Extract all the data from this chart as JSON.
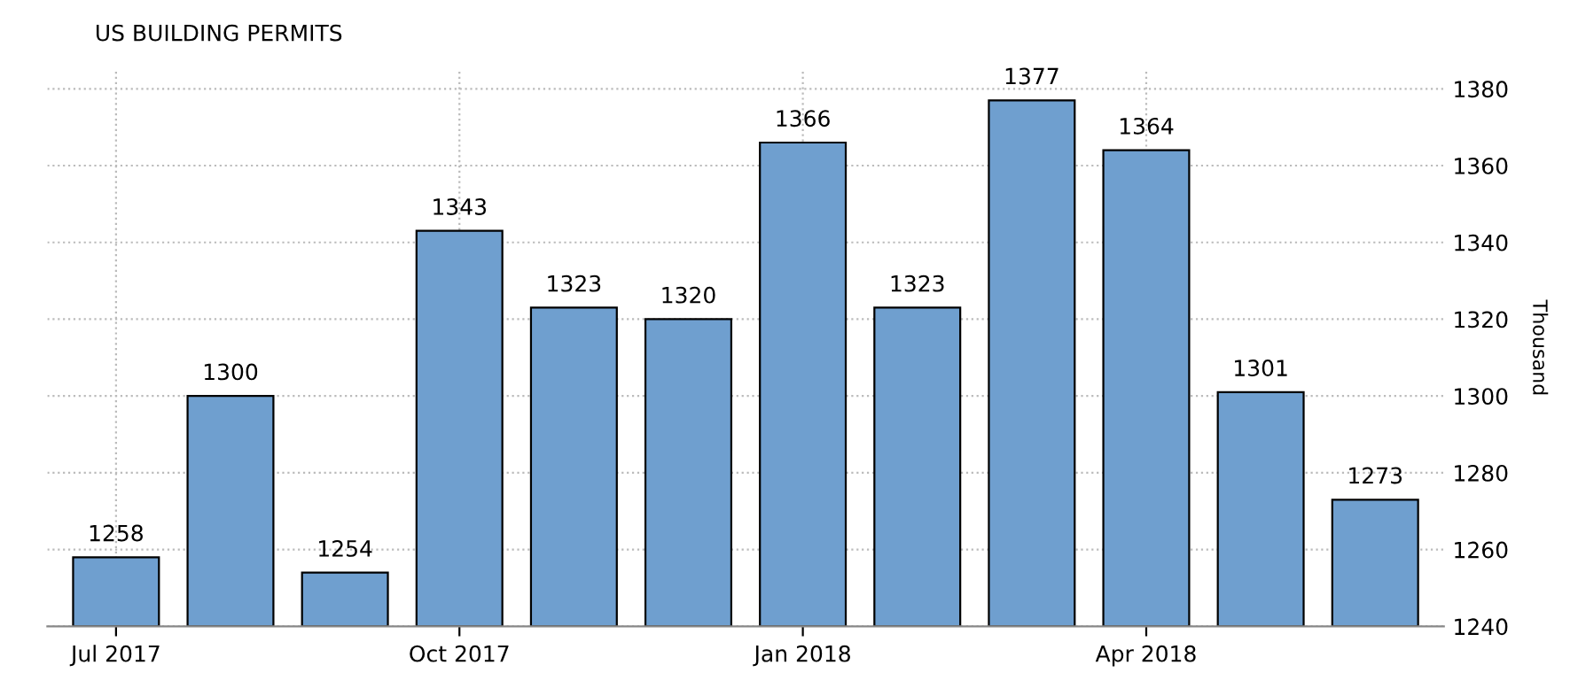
{
  "chart_data": {
    "type": "bar",
    "title": "US BUILDING PERMITS",
    "ylabel": "Thousand",
    "categories": [
      "Jul 2017",
      null,
      null,
      "Oct 2017",
      null,
      null,
      "Jan 2018",
      null,
      null,
      "Apr 2018",
      null,
      null
    ],
    "values": [
      1258,
      1300,
      1254,
      1343,
      1323,
      1320,
      1366,
      1323,
      1377,
      1364,
      1301,
      1273
    ],
    "color": "#6f9fcf",
    "ylim": [
      1240,
      1385
    ],
    "yticks": [
      1240,
      1260,
      1280,
      1300,
      1320,
      1340,
      1360,
      1380
    ],
    "grid": true,
    "data_labels": true
  }
}
